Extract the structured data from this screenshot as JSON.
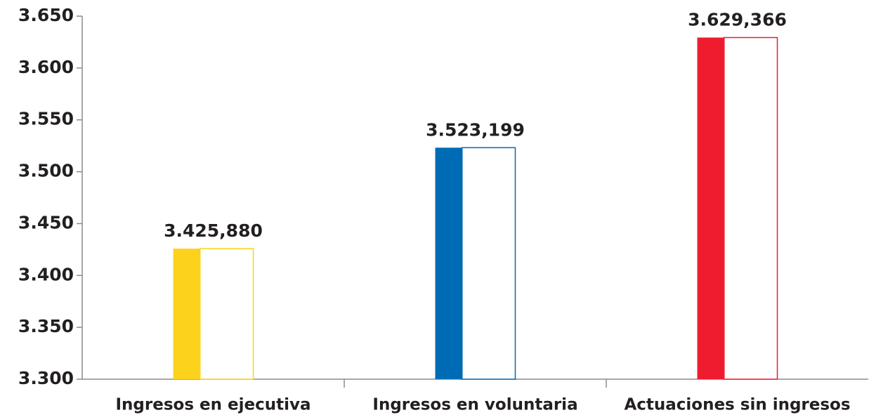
{
  "chart_data": {
    "type": "bar",
    "categories": [
      "Ingresos en ejecutiva",
      "Ingresos en voluntaria",
      "Actuaciones sin ingresos"
    ],
    "values": [
      3425.88,
      3523.199,
      3629.366
    ],
    "value_labels": [
      "3.425,880",
      "3.523,199",
      "3.629,366"
    ],
    "colors": [
      "#fcd21c",
      "#006bb5",
      "#ee1c2e"
    ],
    "ylim": [
      3300,
      3650
    ],
    "yticks": [
      {
        "value": 3300,
        "label": "3.300"
      },
      {
        "value": 3350,
        "label": "3.350"
      },
      {
        "value": 3400,
        "label": "3.400"
      },
      {
        "value": 3450,
        "label": "3.450"
      },
      {
        "value": 3500,
        "label": "3.500"
      },
      {
        "value": 3550,
        "label": "3.550"
      },
      {
        "value": 3600,
        "label": "3.600"
      },
      {
        "value": 3650,
        "label": "3.650"
      }
    ],
    "grid": false
  }
}
